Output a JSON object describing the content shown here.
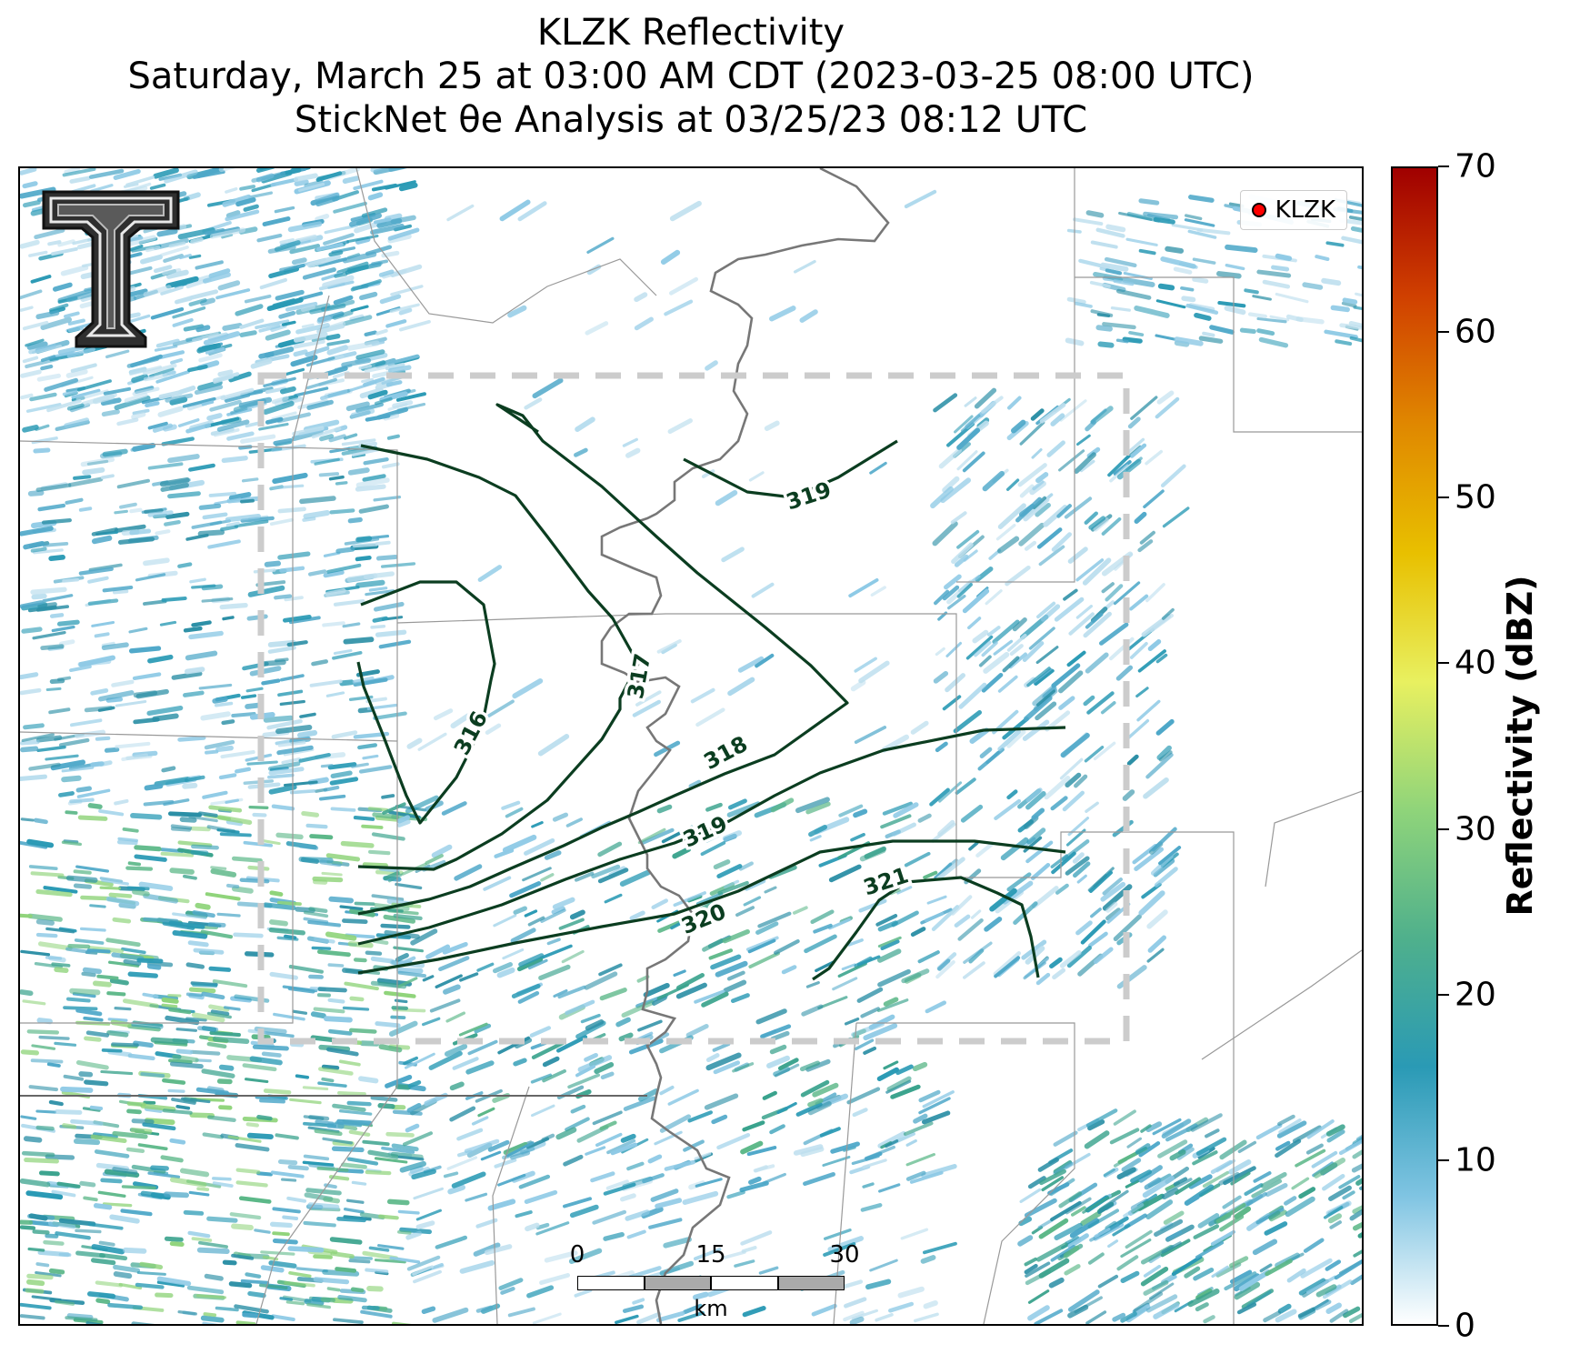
{
  "title": {
    "line1": "KLZK Reflectivity",
    "line2": "Saturday, March 25 at 03:00 AM CDT (2023-03-25 08:00 UTC)",
    "line3": "StickNet θe Analysis at 03/25/23 08:12 UTC"
  },
  "legend": {
    "label": "KLZK",
    "marker_color": "#ff0000"
  },
  "contour_labels": [
    "316",
    "317",
    "318",
    "319",
    "319",
    "320",
    "321"
  ],
  "scalebar": {
    "ticks": [
      "0",
      "15",
      "30"
    ],
    "unit": "km"
  },
  "colorbar": {
    "title": "Reflectivity (dBZ)",
    "ticks": [
      "0",
      "10",
      "20",
      "30",
      "40",
      "50",
      "60",
      "70"
    ],
    "min": 0,
    "max": 70,
    "colors": [
      "#ffffff",
      "#7fc4e2",
      "#2a9ab5",
      "#4fb08c",
      "#8fd47a",
      "#e8f060",
      "#e8c000",
      "#e08800",
      "#d04000",
      "#a00000"
    ]
  },
  "colors": {
    "contour": "#0b3d20",
    "river": "#777777",
    "boundary": "#999999",
    "box": "#cccccc"
  },
  "icons": {
    "logo": "texas-tech-double-t-logo"
  }
}
